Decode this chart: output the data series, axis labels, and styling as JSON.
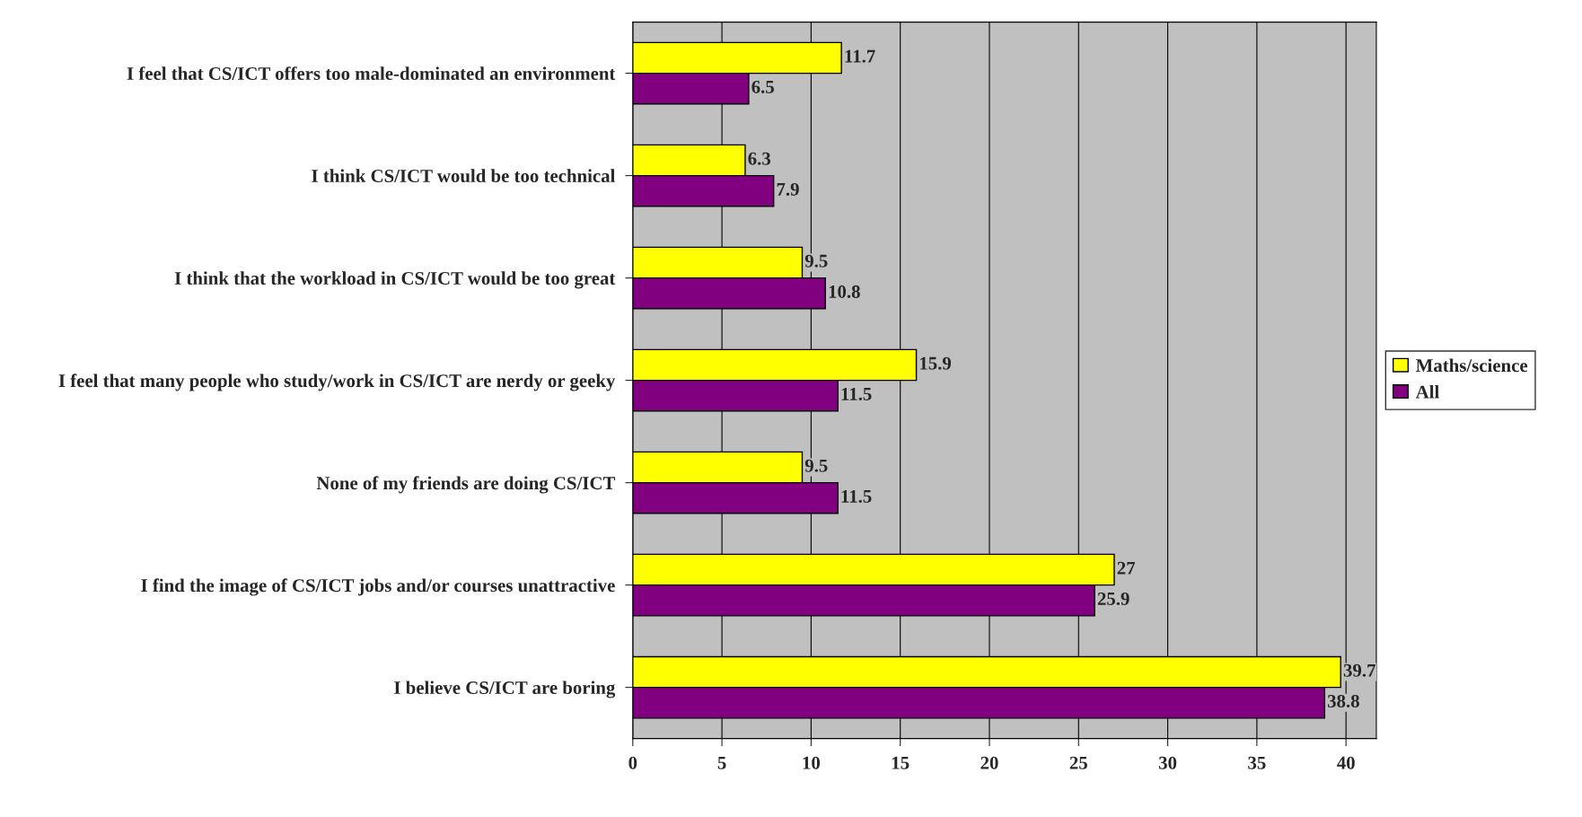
{
  "chart_data": {
    "type": "bar",
    "orientation": "horizontal",
    "categories": [
      "I feel that CS/ICT offers too male-dominated an environment",
      "I think CS/ICT would be too technical",
      "I think that the workload in CS/ICT would be too great",
      "I feel that many people who study/work in CS/ICT are nerdy or geeky",
      "None of my friends are doing CS/ICT",
      "I find the image of CS/ICT jobs and/or courses unattractive",
      "I believe CS/ICT are boring"
    ],
    "series": [
      {
        "name": "Maths/science",
        "color": "#ffff00",
        "values": [
          11.7,
          6.3,
          9.5,
          15.9,
          9.5,
          27,
          39.7
        ]
      },
      {
        "name": "All",
        "color": "#800080",
        "values": [
          6.5,
          7.9,
          10.8,
          11.5,
          11.5,
          25.9,
          38.8
        ]
      }
    ],
    "xlim": [
      0,
      41.7
    ],
    "xticks": [
      0,
      5,
      10,
      15,
      20,
      25,
      30,
      35,
      40
    ],
    "grid": "x",
    "legend": "right",
    "data_labels": true
  }
}
